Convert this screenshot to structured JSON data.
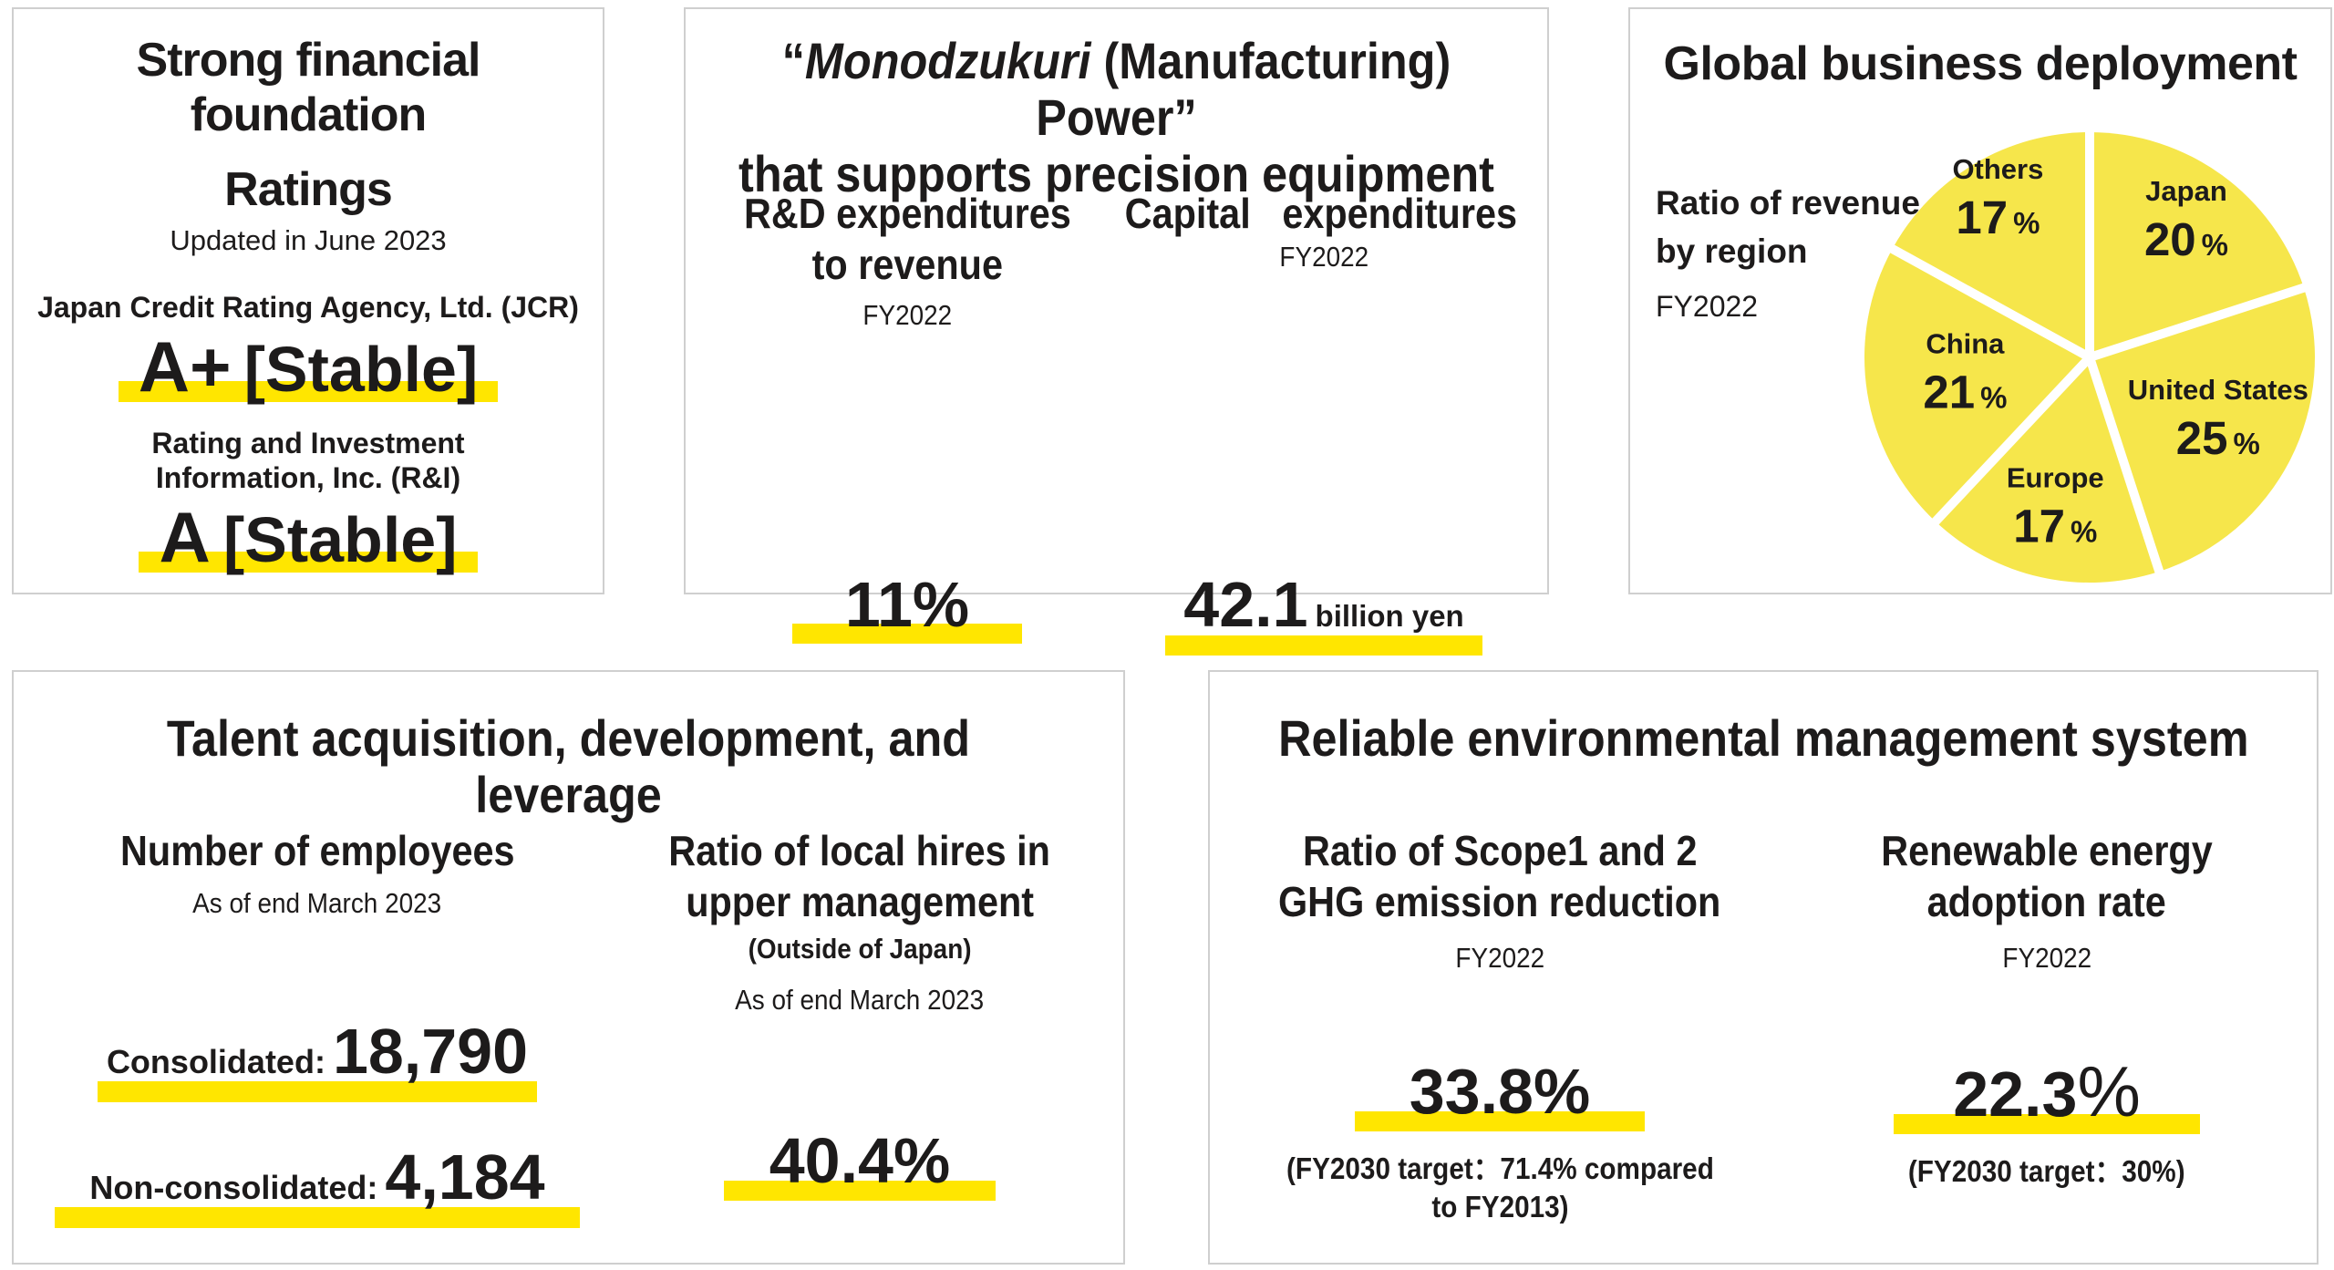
{
  "colors": {
    "highlight": "#FFE600",
    "pie_slice": "#F6E64B",
    "text": "#1D1B1B",
    "panel_border": "#CFCFCF"
  },
  "chart_data": {
    "type": "pie",
    "title": "Global business deployment",
    "categories": [
      "Japan",
      "United States",
      "Europe",
      "China",
      "Others"
    ],
    "values": [
      20,
      25,
      17,
      21,
      17
    ],
    "unit": "%",
    "start_angle": 0,
    "direction": "clockwise",
    "slice_color": "#F6E64B",
    "separator_color": "#FFFFFF",
    "label_position": "inside",
    "legend": "none"
  },
  "panels": {
    "financial": {
      "title": [
        "Strong financial",
        "foundation"
      ],
      "section": "Ratings",
      "updated": "Updated in June 2023",
      "jcr": {
        "name": "Japan Credit Rating Agency, Ltd. (JCR)",
        "grade": "A+",
        "outlook": "[Stable]"
      },
      "ri": {
        "name": [
          "Rating and Investment",
          "Information, Inc. (R&I)"
        ],
        "grade": "A",
        "outlook": "[Stable]"
      }
    },
    "monodzukuri": {
      "title": {
        "open": "“",
        "italic": "Monodzukuri",
        "rest": " (Manufacturing) Power”",
        "line2": "that supports precision equipment"
      },
      "rd": {
        "label": [
          "R&D expenditures",
          "to revenue"
        ],
        "period": "FY2022",
        "value": "11%"
      },
      "capex": {
        "label": [
          "Capital",
          "expenditures"
        ],
        "period": "FY2022",
        "value": "42.1",
        "unit": "billion yen"
      }
    },
    "global": {
      "title": "Global business deployment",
      "subtitle": [
        "Ratio of revenue",
        "by region"
      ],
      "period": "FY2022"
    },
    "talent": {
      "title": "Talent acquisition, development, and leverage",
      "employees": {
        "label": "Number of employees",
        "asof": "As of end March 2023",
        "consolidated_label": "Consolidated:",
        "consolidated_value": "18,790",
        "nonconsolidated_label": "Non-consolidated:",
        "nonconsolidated_value": "4,184"
      },
      "local_hires": {
        "label": [
          "Ratio of local hires in",
          "upper management"
        ],
        "note": "(Outside of Japan)",
        "asof": "As of end March 2023",
        "value": "40.4%"
      }
    },
    "environment": {
      "title": "Reliable environmental management system",
      "ghg": {
        "label": [
          "Ratio of Scope1 and 2",
          "GHG emission reduction"
        ],
        "period": "FY2022",
        "value": "33.8%",
        "target": [
          "(FY2030 target：71.4% compared",
          "to FY2013)"
        ]
      },
      "renewable": {
        "label": [
          "Renewable energy",
          "adoption rate"
        ],
        "period": "FY2022",
        "value": "22.3",
        "value_suffix": "%",
        "target": "(FY2030 target：30%)"
      }
    }
  }
}
